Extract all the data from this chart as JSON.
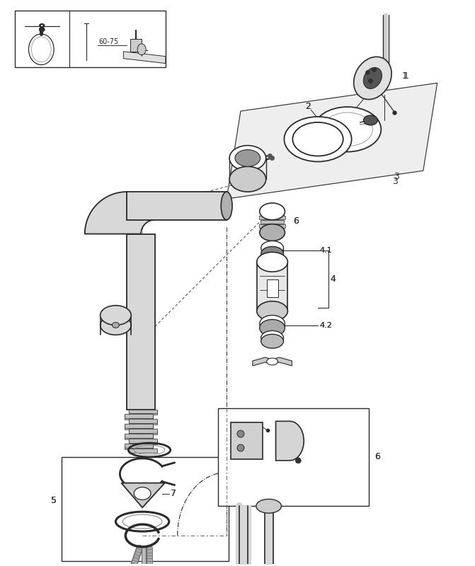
{
  "bg_color": "#ffffff",
  "lc": "#2a2a2a",
  "fig_w": 6.71,
  "fig_h": 8.0,
  "dpi": 100
}
